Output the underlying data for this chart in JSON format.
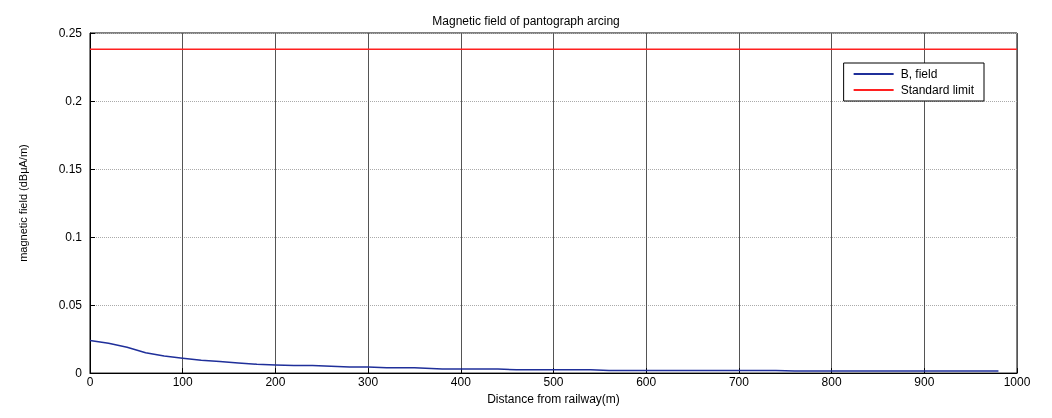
{
  "chart_data": {
    "type": "line",
    "title": "Magnetic field of pantograph arcing",
    "xlabel": "Distance from railway(m)",
    "ylabel": "magnetic field (dBμA/m)",
    "xlim": [
      0,
      1000
    ],
    "xticks": [
      0,
      100,
      200,
      300,
      400,
      500,
      600,
      700,
      800,
      900,
      1000
    ],
    "ylim": [
      0,
      0.25
    ],
    "yticks": [
      0,
      0.05,
      0.1,
      0.15,
      0.2,
      0.25
    ],
    "grid": true,
    "legend": "top right",
    "marker": "none",
    "line_style": "solid",
    "series": [
      {
        "name": "B, field",
        "color": "#1f2f9a",
        "x": [
          0,
          20,
          40,
          60,
          80,
          100,
          120,
          140,
          160,
          180,
          200,
          220,
          240,
          260,
          280,
          300,
          320,
          350,
          380,
          440,
          460,
          540,
          560,
          740,
          760,
          980
        ],
        "values": [
          0.024,
          0.022,
          0.019,
          0.015,
          0.0125,
          0.011,
          0.0095,
          0.0085,
          0.0075,
          0.0065,
          0.006,
          0.0055,
          0.0055,
          0.005,
          0.0045,
          0.0045,
          0.004,
          0.004,
          0.003,
          0.003,
          0.0025,
          0.0025,
          0.002,
          0.002,
          0.0015,
          0.0015
        ]
      },
      {
        "name": "Standard limit",
        "color": "#ff2020",
        "x": [
          0,
          1000
        ],
        "values": [
          0.238,
          0.238
        ]
      }
    ]
  }
}
